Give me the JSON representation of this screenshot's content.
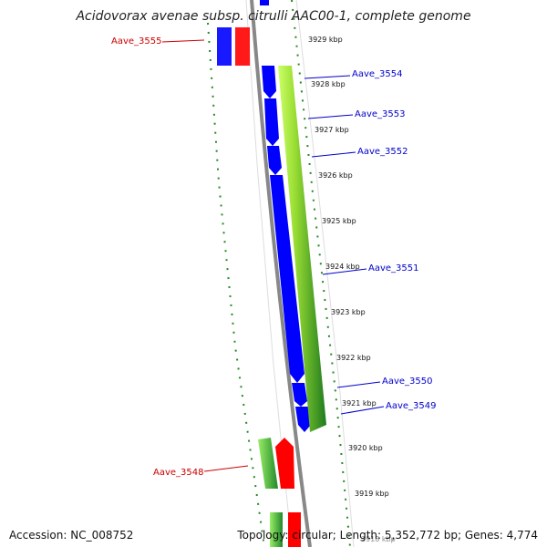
{
  "title": "Acidovorax avenae subsp. citrulli AAC00-1, complete genome",
  "footer": {
    "accession": "Accession: NC_008752",
    "topology": "Topology: circular; Length: 5,352,772 bp; Genes: 4,774"
  },
  "colors": {
    "forward_gene_label": "#0000cc",
    "reverse_gene_label": "#cc0000",
    "cds_forward": "#0000ff",
    "cds_reverse": "#ff0000",
    "rna_green": "#33aa33",
    "backbone": "#888888",
    "tick_green": "#228b22"
  },
  "kbp_labels": [
    "3929 kbp",
    "3928 kbp",
    "3927 kbp",
    "3926 kbp",
    "3925 kbp",
    "3924 kbp",
    "3923 kbp",
    "3922 kbp",
    "3921 kbp",
    "3920 kbp",
    "3919 kbp",
    "3918 kbp"
  ],
  "genes_forward": [
    "Aave_3554",
    "Aave_3553",
    "Aave_3552",
    "Aave_3551",
    "Aave_3550",
    "Aave_3549"
  ],
  "genes_reverse": [
    "Aave_3555",
    "Aave_3548"
  ]
}
